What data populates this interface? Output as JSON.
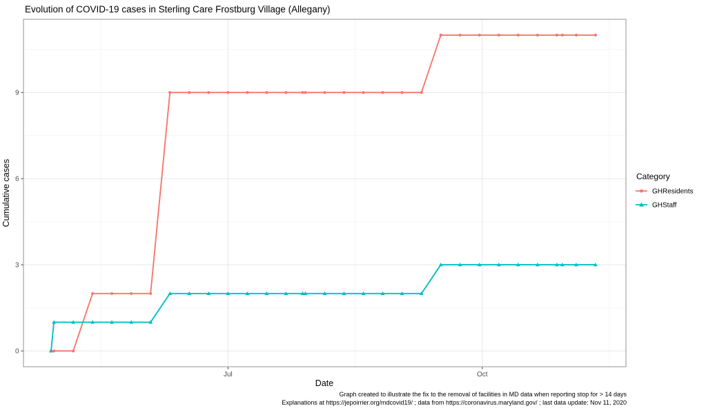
{
  "chart_data": {
    "type": "line",
    "title": "Evolution of COVID-19 cases in Sterling Care Frostburg Village (Allegany)",
    "xlabel": "Date",
    "ylabel": "Cumulative cases",
    "legend_title": "Category",
    "legend_position": "right",
    "grid": true,
    "x_domain": [
      "2020-04-18",
      "2020-11-22"
    ],
    "ylim": [
      -0.55,
      11.55
    ],
    "y_major_ticks": [
      0,
      3,
      6,
      9
    ],
    "y_minor_gridlines": [
      1.5,
      4.5,
      7.5,
      10.5
    ],
    "x_major_ticks": [
      {
        "date": "2020-07-01",
        "label": "Jul"
      },
      {
        "date": "2020-10-01",
        "label": "Oct"
      }
    ],
    "x_minor_gridlines": [
      "2020-05-16",
      "2020-08-16",
      "2020-11-16"
    ],
    "dates": [
      "2020-04-28",
      "2020-04-29",
      "2020-05-06",
      "2020-05-13",
      "2020-05-20",
      "2020-05-27",
      "2020-06-03",
      "2020-06-10",
      "2020-06-17",
      "2020-06-24",
      "2020-07-01",
      "2020-07-08",
      "2020-07-15",
      "2020-07-22",
      "2020-07-28",
      "2020-07-29",
      "2020-08-05",
      "2020-08-12",
      "2020-08-19",
      "2020-08-26",
      "2020-09-02",
      "2020-09-09",
      "2020-09-16",
      "2020-09-23",
      "2020-09-30",
      "2020-10-07",
      "2020-10-14",
      "2020-10-21",
      "2020-10-28",
      "2020-10-30",
      "2020-11-04",
      "2020-11-11"
    ],
    "series": [
      {
        "name": "GHResidents",
        "color": "#F8766D",
        "marker": "circle",
        "values": [
          0,
          0,
          0,
          2,
          2,
          2,
          2,
          9,
          9,
          9,
          9,
          9,
          9,
          9,
          9,
          9,
          9,
          9,
          9,
          9,
          9,
          9,
          11,
          11,
          11,
          11,
          11,
          11,
          11,
          11,
          11,
          11
        ]
      },
      {
        "name": "GHStaff",
        "color": "#00BFC4",
        "marker": "triangle",
        "values": [
          0,
          1,
          1,
          1,
          1,
          1,
          1,
          2,
          2,
          2,
          2,
          2,
          2,
          2,
          2,
          2,
          2,
          2,
          2,
          2,
          2,
          2,
          3,
          3,
          3,
          3,
          3,
          3,
          3,
          3,
          3,
          3
        ]
      }
    ],
    "caption_lines": [
      "Graph created to illustrate the fix to the removal of facilities in MD data when reporting stop for > 14 days",
      "Explanations at https://jepoirrier.org/mdcovid19/ ; data from https://coronavirus.maryland.gov/ ; last data update: Nov 11, 2020"
    ],
    "colors": {
      "panel_background": "#ffffff",
      "panel_border": "#a3a3a3",
      "grid_major": "#e7e7e7",
      "grid_minor": "#f3f3f3",
      "tick_mark": "#333333",
      "tick_label": "#4d4d4d"
    }
  }
}
